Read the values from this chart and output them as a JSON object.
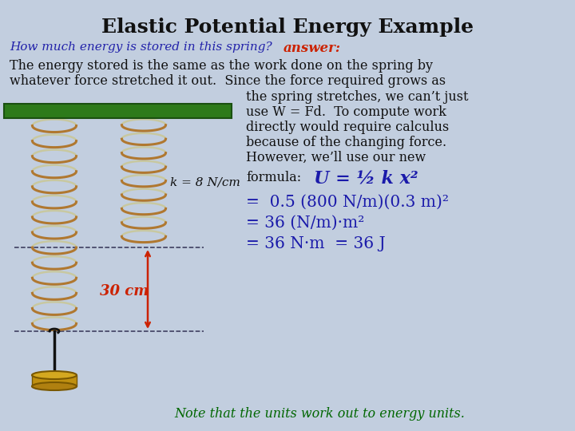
{
  "title": "Elastic Potential Energy Example",
  "title_fontsize": 18,
  "title_color": "#111111",
  "bg_color": "#c2cedf",
  "question_text": "How much energy is stored in this spring?",
  "question_color": "#2222aa",
  "answer_label": "answer:",
  "answer_color": "#cc2200",
  "line1": "The energy stored is the same as the work done on the spring by",
  "line2": "whatever force stretched it out.  Since the force required grows as",
  "line3": "the spring stretches, we can’t just",
  "line4": "use W = Fd.  To compute work",
  "line5": "directly would require calculus",
  "line6": "because of the changing force.",
  "line7": "However, we’ll use our new",
  "body_color": "#111111",
  "formula_label": "formula:",
  "formula_eq": "U = ½ k x²",
  "formula_color": "#1a1aaa",
  "calc1": "=  0.5 (800 N/m)(0.3 m)²",
  "calc2": "= 36 (N/m)·m²",
  "calc3": "= 36 N·m  = 36 J",
  "note": "Note that the units work out to energy units.",
  "note_color": "#006600",
  "k_label": "k = 8 N/cm",
  "k_color": "#111111",
  "dist_label": "30 cm",
  "dist_color": "#cc2200",
  "green_bar_color": "#2d7a1a",
  "spring_color_outer": "#b07830",
  "spring_color_inner": "#c8c8a0",
  "arrow_color": "#cc2200"
}
